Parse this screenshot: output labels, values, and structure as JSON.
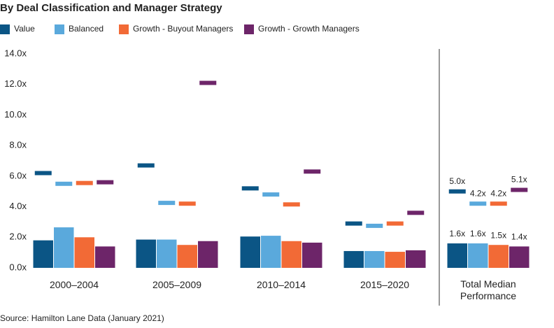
{
  "chart_data": {
    "type": "bar",
    "title": "By Deal Classification and Manager Strategy",
    "source": "Source: Hamilton Lane Data (January 2021)",
    "categories": [
      "2000–2004",
      "2005–2009",
      "2010–2014",
      "2015–2020",
      "Total Median Performance"
    ],
    "series": [
      {
        "name": "Value",
        "color": "#0b5585",
        "values": [
          1.8,
          1.85,
          2.05,
          1.1,
          1.6
        ],
        "value_labels": [
          null,
          null,
          null,
          null,
          "1.6x"
        ],
        "marker_values": [
          6.2,
          6.7,
          5.2,
          2.9,
          5.0
        ],
        "marker_labels": [
          null,
          null,
          null,
          null,
          "5.0x"
        ]
      },
      {
        "name": "Balanced",
        "color": "#5aa9dc",
        "values": [
          2.65,
          1.85,
          2.1,
          1.1,
          1.6
        ],
        "value_labels": [
          null,
          null,
          null,
          null,
          "1.6x"
        ],
        "marker_values": [
          5.5,
          4.25,
          4.8,
          2.75,
          4.2
        ],
        "marker_labels": [
          null,
          null,
          null,
          null,
          "4.2x"
        ]
      },
      {
        "name": "Growth - Buyout Managers",
        "color": "#f26a36",
        "values": [
          2.0,
          1.5,
          1.75,
          1.05,
          1.5
        ],
        "value_labels": [
          null,
          null,
          null,
          null,
          "1.5x"
        ],
        "marker_values": [
          5.55,
          4.2,
          4.15,
          2.9,
          4.2
        ],
        "marker_labels": [
          null,
          null,
          null,
          null,
          "4.2x"
        ]
      },
      {
        "name": "Growth - Growth Managers",
        "color": "#6d2569",
        "values": [
          1.4,
          1.75,
          1.65,
          1.15,
          1.4
        ],
        "value_labels": [
          null,
          null,
          null,
          null,
          "1.4x"
        ],
        "marker_values": [
          5.6,
          12.1,
          6.3,
          3.6,
          5.1
        ],
        "marker_labels": [
          null,
          null,
          null,
          null,
          "5.1x"
        ]
      }
    ],
    "ylim": [
      0,
      14
    ],
    "yticks": [
      {
        "value": 0,
        "label": "0.0x"
      },
      {
        "value": 2,
        "label": "2.0x"
      },
      {
        "value": 4,
        "label": "4.0x"
      },
      {
        "value": 6,
        "label": "6.0x"
      },
      {
        "value": 8,
        "label": "8.0x"
      },
      {
        "value": 10,
        "label": "10.0x"
      },
      {
        "value": 12,
        "label": "12.0x"
      },
      {
        "value": 14,
        "label": "14.0x"
      }
    ],
    "grid": false
  }
}
